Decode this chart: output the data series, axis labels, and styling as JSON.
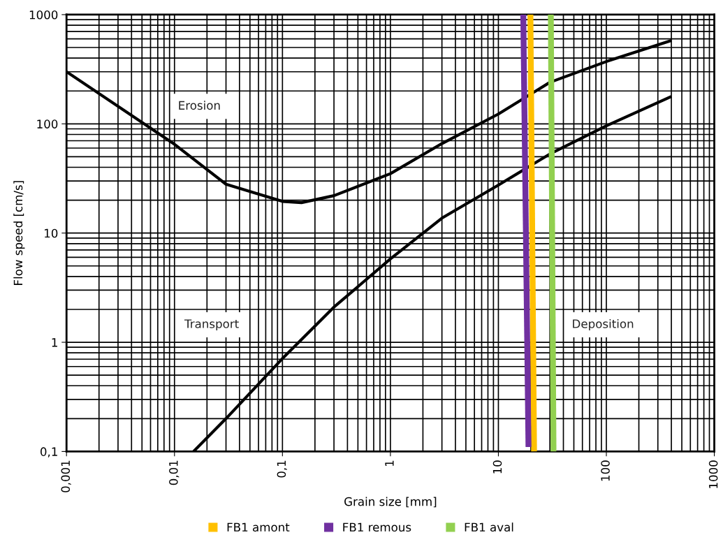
{
  "chart_data": {
    "type": "line",
    "xlabel": "Grain size [mm]",
    "ylabel": "Flow speed [cm/s]",
    "log": "xy",
    "grid": true,
    "legend": "bottom",
    "xlim": [
      0.001,
      1000
    ],
    "ylim": [
      0.1,
      1000
    ],
    "xticks": [
      {
        "value": 0.001,
        "label": "0,001"
      },
      {
        "value": 0.01,
        "label": "0,01"
      },
      {
        "value": 0.1,
        "label": "0,1"
      },
      1,
      10,
      100,
      1000
    ],
    "yticks": [
      {
        "value": 0.1,
        "label": "0,1"
      },
      1,
      10,
      100,
      1000
    ],
    "annotations": [
      "Erosion",
      "Transport",
      "Deposition"
    ],
    "series": [
      {
        "color": "#000000",
        "x": [
          0.001,
          0.01,
          0.03,
          0.1,
          0.15,
          0.3,
          1,
          3,
          10,
          30,
          100,
          400
        ],
        "values": [
          300,
          65,
          28,
          19.5,
          19,
          22,
          35,
          66,
          123,
          240,
          372,
          580
        ]
      },
      {
        "color": "#000000",
        "x": [
          0.015,
          0.03,
          0.1,
          0.3,
          1,
          3,
          10,
          30,
          100,
          400
        ],
        "values": [
          0.1,
          0.2,
          0.71,
          2.1,
          5.8,
          13.7,
          27.5,
          53,
          96,
          178
        ]
      },
      {
        "name": "FB1 amont",
        "color": "#ffc000",
        "x": [
          19.8,
          21.4
        ],
        "values": [
          1000,
          0.1
        ]
      },
      {
        "name": "FB1 remous",
        "color": "#7030a0",
        "x": [
          17,
          19
        ],
        "values": [
          1000,
          0.11
        ]
      },
      {
        "name": "FB1 aval",
        "color": "#92d050",
        "x": [
          30.6,
          32.4
        ],
        "values": [
          1000,
          0.1
        ]
      }
    ]
  }
}
